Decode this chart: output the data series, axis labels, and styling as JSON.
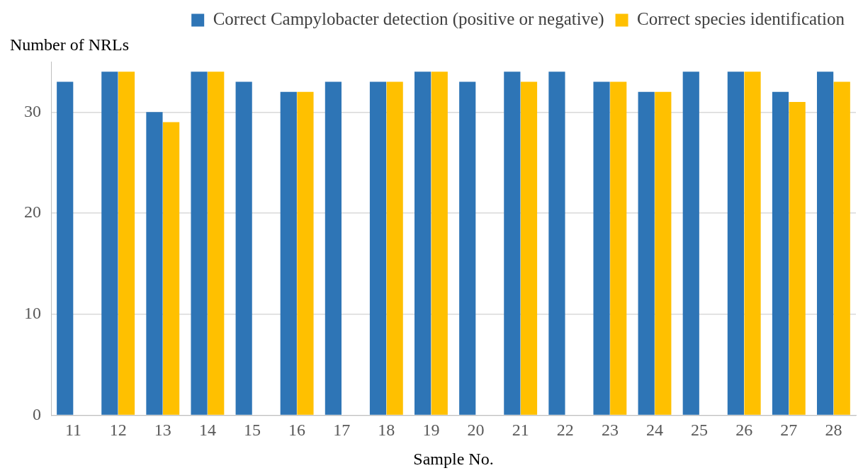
{
  "chart_data": {
    "type": "bar",
    "xlabel": "Sample No.",
    "ylabel": "Number of NRLs",
    "categories": [
      "11",
      "12",
      "13",
      "14",
      "15",
      "16",
      "17",
      "18",
      "19",
      "20",
      "21",
      "22",
      "23",
      "24",
      "25",
      "26",
      "27",
      "28"
    ],
    "series": [
      {
        "name": "Correct Campylobacter detection (positive or negative)",
        "color": "#2e75b6",
        "values": [
          33,
          34,
          30,
          34,
          33,
          32,
          33,
          33,
          34,
          33,
          34,
          34,
          33,
          32,
          34,
          34,
          32,
          34
        ]
      },
      {
        "name": "Correct species identification",
        "color": "#ffc000",
        "values": [
          null,
          34,
          29,
          34,
          null,
          32,
          null,
          33,
          34,
          null,
          33,
          null,
          33,
          32,
          null,
          34,
          31,
          33
        ]
      }
    ],
    "ylim": [
      0,
      35
    ],
    "yticks": [
      0,
      10,
      20,
      30
    ],
    "grid": "y",
    "legend": "top right"
  }
}
